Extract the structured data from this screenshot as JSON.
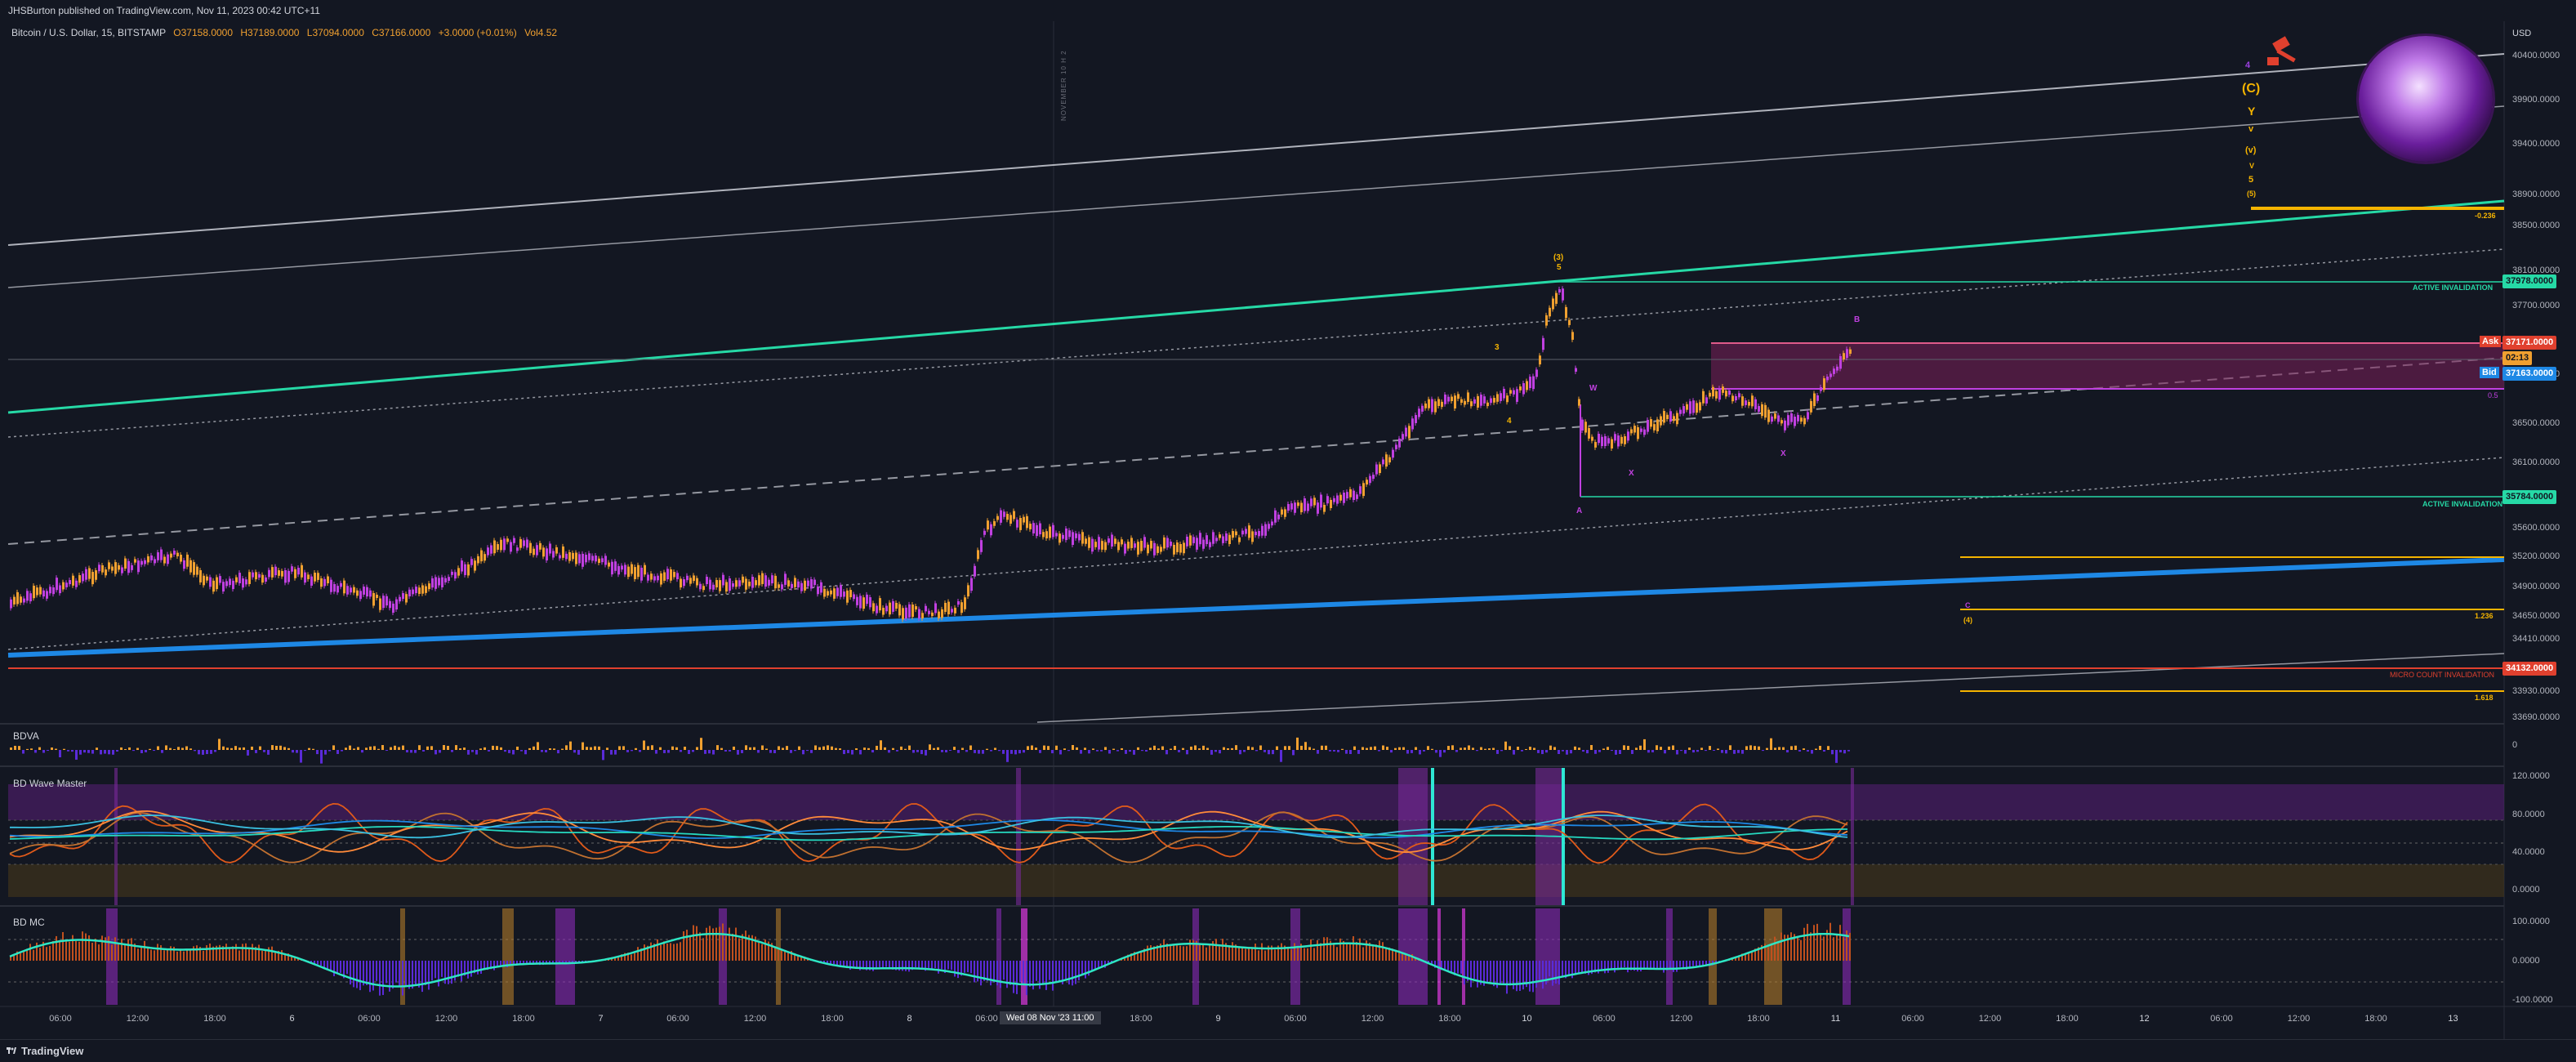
{
  "header": {
    "publisher": "JHSBurton published on TradingView.com, Nov 11, 2023 00:42 UTC+11"
  },
  "legend": {
    "symbol": "Bitcoin / U.S. Dollar, 15, BITSTAMP",
    "open": "O37158.0000",
    "high": "H37189.0000",
    "low": "L37094.0000",
    "close": "C37166.0000",
    "change": "+3.0000 (+0.01%)",
    "volume": "Vol4.52"
  },
  "price_axis": {
    "currency": "USD",
    "labels": [
      "40400.0000",
      "39900.0000",
      "39400.0000",
      "38900.0000",
      "38500.0000",
      "38100.0000",
      "37700.0000",
      "36900.0000",
      "36500.0000",
      "36100.0000",
      "35600.0000",
      "35200.0000",
      "34900.0000",
      "34650.0000",
      "34410.0000",
      "33930.0000",
      "33690.0000"
    ]
  },
  "price_tags": {
    "invalidation_upper": "37978.0000",
    "ask_label": "Ask",
    "ask": "37171.0000",
    "countdown": "02:13",
    "bid_label": "Bid",
    "bid": "37163.0000",
    "invalidation_lower": "35784.0000",
    "micro_invalidation": "34132.0000"
  },
  "annotations": {
    "active_invalidation_upper": "ACTIVE INVALIDATION",
    "active_invalidation_lower": "ACTIVE INVALIDATION",
    "micro_count": "MICRO COUNT INVALIDATION",
    "fib_top": "-0.236",
    "fib_mid": "1.236",
    "fib_bottom": "1.618",
    "fib_box": "0.5",
    "vertical_note": "NOVEMBER 10 H 2"
  },
  "wave_labels": {
    "stack": [
      "4",
      "(C)",
      "Y",
      "v",
      "(v)",
      "V",
      "5",
      "(5)"
    ],
    "peak_top": "(3)",
    "peak_sub": "5",
    "w": "W",
    "x1": "X",
    "x2": "X",
    "b": "B",
    "a": "A",
    "four": "4",
    "three": "3",
    "paren4": "(4)",
    "c": "C"
  },
  "panes": {
    "bdva": {
      "title": "BDVA",
      "zero": "0"
    },
    "wavemaster": {
      "title": "BD Wave Master",
      "ticks": [
        "120.0000",
        "80.0000",
        "40.0000",
        "0.0000"
      ]
    },
    "mc": {
      "title": "BD MC",
      "ticks": [
        "100.0000",
        "0.0000",
        "-100.0000"
      ]
    }
  },
  "time_axis": {
    "labels": [
      "06:00",
      "12:00",
      "18:00",
      "6",
      "06:00",
      "12:00",
      "18:00",
      "7",
      "06:00",
      "12:00",
      "18:00",
      "8",
      "06:00",
      "12:00",
      "18:00",
      "9",
      "06:00",
      "12:00",
      "18:00",
      "10",
      "06:00",
      "12:00",
      "18:00",
      "11",
      "06:00",
      "12:00",
      "18:00",
      "12",
      "06:00",
      "12:00",
      "18:00",
      "13"
    ],
    "cursor": "Wed 08 Nov '23  11:00"
  },
  "footer": {
    "brand": "TradingView"
  },
  "colors": {
    "background": "#131722",
    "candle_up": "#f0a030",
    "candle_down": "#c040e0",
    "channel_teal": "#26d9a6",
    "trend_blue": "#1e88e5",
    "invalidation_red": "#e0402e",
    "fib_orange": "#f5b400"
  }
}
